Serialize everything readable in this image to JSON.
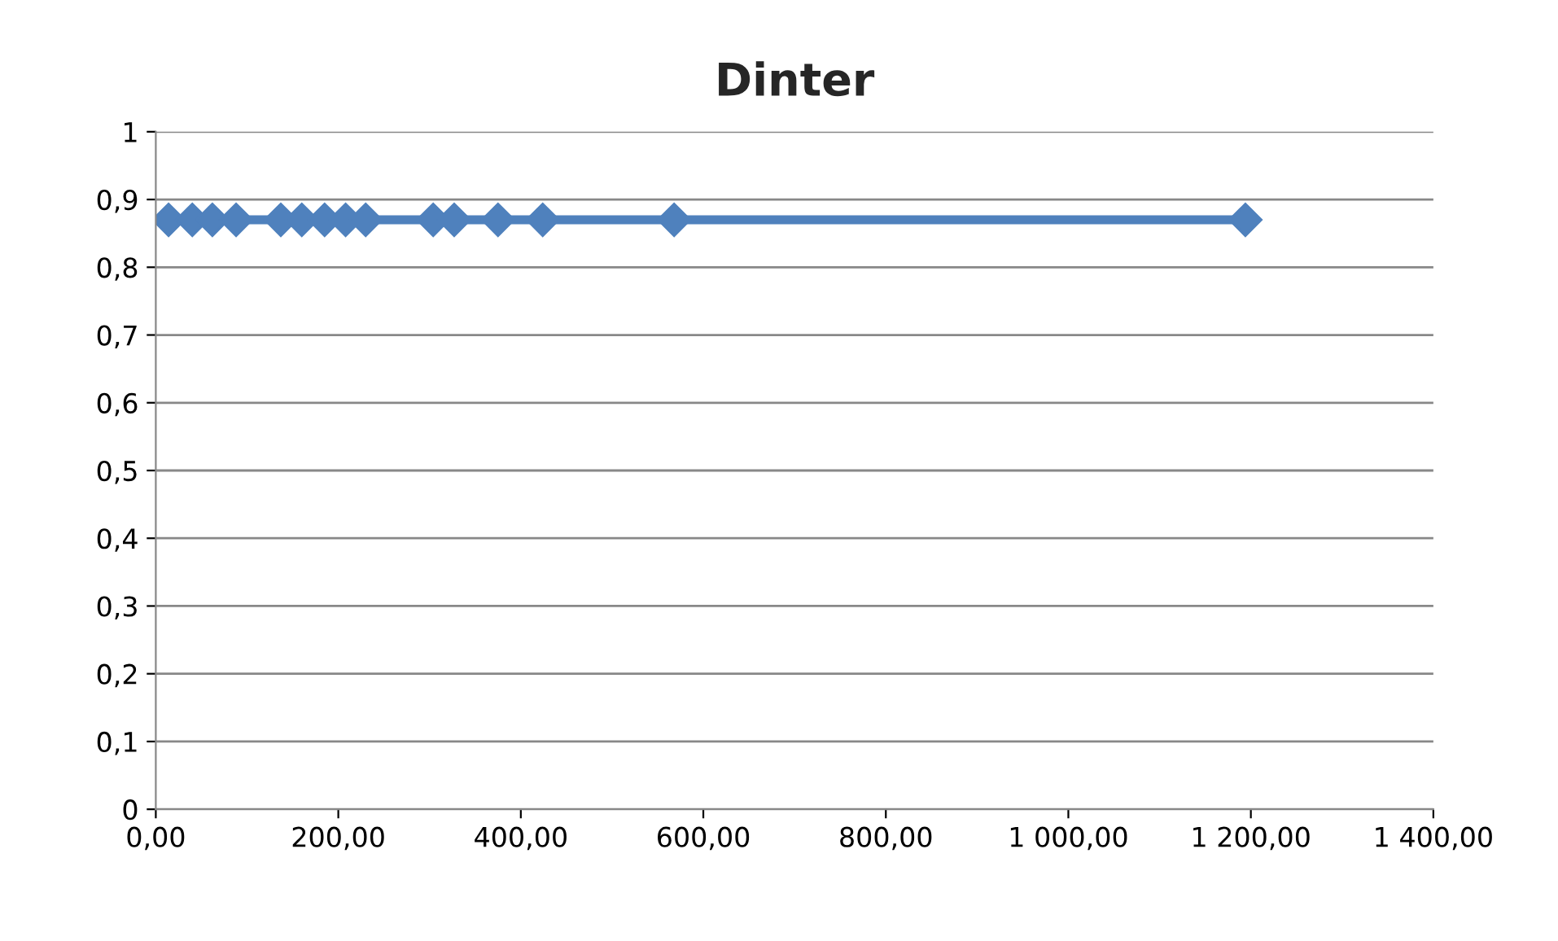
{
  "chart_data": {
    "type": "line",
    "title": "Dinter",
    "x": [
      14,
      40,
      62,
      88,
      137,
      160,
      185,
      208,
      230,
      304,
      327,
      375,
      424,
      568,
      1194
    ],
    "series": [
      {
        "color": "#4f81bd",
        "values": [
          0.87,
          0.87,
          0.87,
          0.87,
          0.87,
          0.87,
          0.87,
          0.87,
          0.87,
          0.87,
          0.87,
          0.87,
          0.87,
          0.87,
          0.87
        ]
      }
    ],
    "marker": "diamond",
    "line_style": "solid",
    "grid": "y",
    "xlim": [
      0,
      1400
    ],
    "xticks": [
      {
        "value": 0,
        "label": "0,00"
      },
      {
        "value": 200,
        "label": "200,00"
      },
      {
        "value": 400,
        "label": "400,00"
      },
      {
        "value": 600,
        "label": "600,00"
      },
      {
        "value": 800,
        "label": "800,00"
      },
      {
        "value": 1000,
        "label": "1 000,00"
      },
      {
        "value": 1200,
        "label": "1 200,00"
      },
      {
        "value": 1400,
        "label": "1 400,00"
      }
    ],
    "ylim": [
      0,
      1
    ],
    "yticks": [
      0,
      {
        "value": 0.1,
        "label": "0,1"
      },
      {
        "value": 0.2,
        "label": "0,2"
      },
      {
        "value": 0.3,
        "label": "0,3"
      },
      {
        "value": 0.4,
        "label": "0,4"
      },
      {
        "value": 0.5,
        "label": "0,5"
      },
      {
        "value": 0.6,
        "label": "0,6"
      },
      {
        "value": 0.7,
        "label": "0,7"
      },
      {
        "value": 0.8,
        "label": "0,8"
      },
      {
        "value": 0.9,
        "label": "0,9"
      },
      1
    ]
  }
}
